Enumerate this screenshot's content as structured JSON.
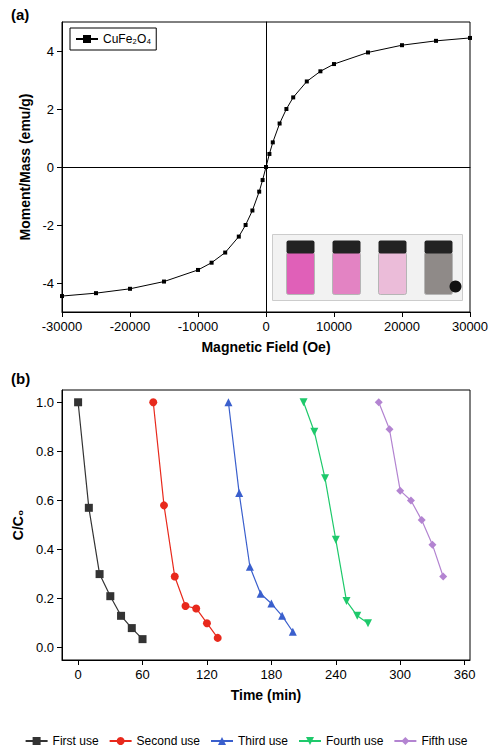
{
  "chart_data": [
    {
      "type": "line",
      "title": "(a)",
      "xlabel": "Magnetic Field (Oe)",
      "ylabel": "Moment/Mass (emu/g)",
      "xlim": [
        -30000,
        30000
      ],
      "ylim": [
        -5,
        5
      ],
      "xticks": [
        -30000,
        -20000,
        -10000,
        0,
        10000,
        20000,
        30000
      ],
      "yticks": [
        -4,
        -2,
        0,
        2,
        4
      ],
      "grid": false,
      "legend": "upper left",
      "x": [
        -30000,
        -25000,
        -20000,
        -15000,
        -10000,
        -8000,
        -6000,
        -4000,
        -3000,
        -2000,
        -1000,
        -500,
        0,
        500,
        1000,
        2000,
        3000,
        4000,
        6000,
        8000,
        10000,
        15000,
        20000,
        25000,
        30000
      ],
      "series": [
        {
          "name": "CuFe₂O₄",
          "color": "#000000",
          "marker": "square",
          "values": [
            -4.45,
            -4.35,
            -4.2,
            -3.95,
            -3.55,
            -3.3,
            -2.95,
            -2.4,
            -2.0,
            -1.5,
            -0.85,
            -0.45,
            0,
            0.45,
            0.85,
            1.5,
            2.0,
            2.4,
            2.95,
            3.3,
            3.55,
            3.95,
            4.2,
            4.35,
            4.45
          ]
        }
      ]
    },
    {
      "type": "line",
      "title": "(b)",
      "xlabel": "Time (min)",
      "ylabel": "C/C₀",
      "xlim": [
        -15,
        365
      ],
      "ylim": [
        -0.05,
        1.05
      ],
      "xticks": [
        0,
        60,
        120,
        180,
        240,
        300,
        360
      ],
      "yticks": [
        {
          "value": 0,
          "label": "0.0"
        },
        {
          "value": 0.2,
          "label": "0.2"
        },
        {
          "value": 0.4,
          "label": "0.4"
        },
        {
          "value": 0.6,
          "label": "0.6"
        },
        {
          "value": 0.8,
          "label": "0.8"
        },
        {
          "value": 1,
          "label": "1.0"
        }
      ],
      "grid": false,
      "legend": "bottom",
      "series": [
        {
          "name": "First use",
          "color": "#333333",
          "marker": "square",
          "x": [
            0,
            10,
            20,
            30,
            40,
            50,
            60
          ],
          "values": [
            1.0,
            0.57,
            0.3,
            0.21,
            0.13,
            0.08,
            0.035
          ]
        },
        {
          "name": "Second use",
          "color": "#e8291c",
          "marker": "circle",
          "x": [
            70,
            80,
            90,
            100,
            110,
            120,
            130
          ],
          "values": [
            1.0,
            0.58,
            0.29,
            0.17,
            0.16,
            0.1,
            0.04
          ]
        },
        {
          "name": "Third use",
          "color": "#3a5fcd",
          "marker": "triangle",
          "x": [
            140,
            150,
            160,
            170,
            180,
            190,
            200
          ],
          "values": [
            1.0,
            0.63,
            0.33,
            0.22,
            0.18,
            0.13,
            0.065
          ]
        },
        {
          "name": "Fourth use",
          "color": "#1ec96b",
          "marker": "triangle_down",
          "x": [
            210,
            220,
            230,
            240,
            250,
            260,
            270
          ],
          "values": [
            1.0,
            0.88,
            0.69,
            0.44,
            0.19,
            0.13,
            0.1
          ]
        },
        {
          "name": "Fifth use",
          "color": "#b384d1",
          "marker": "diamond",
          "x": [
            280,
            290,
            300,
            310,
            320,
            330,
            340
          ],
          "values": [
            1.0,
            0.89,
            0.64,
            0.6,
            0.52,
            0.42,
            0.29
          ]
        }
      ]
    }
  ]
}
